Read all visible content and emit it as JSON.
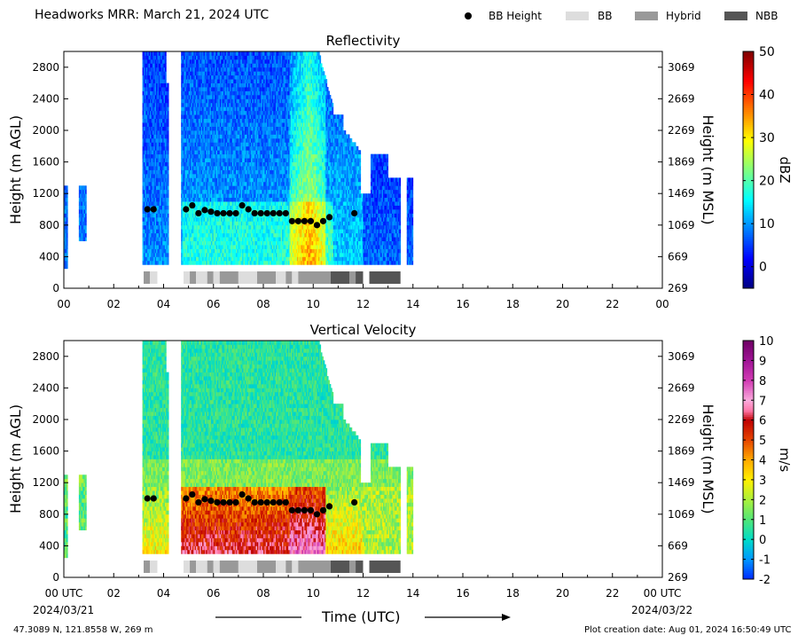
{
  "title": "Headworks MRR:  March 21, 2024 UTC",
  "legend": [
    {
      "label": "BB Height",
      "kind": "dot",
      "color": "#000000"
    },
    {
      "label": "BB",
      "kind": "swatch",
      "color": "#dddddd"
    },
    {
      "label": "Hybrid",
      "kind": "swatch",
      "color": "#999999"
    },
    {
      "label": "NBB",
      "kind": "swatch",
      "color": "#555555"
    }
  ],
  "xlabel": "Time (UTC)",
  "date_start": "2024/03/21",
  "date_end": "2024/03/22",
  "footer_location": "47.3089 N, 121.8558 W, 269 m",
  "footer_created": "Plot creation date: Aug 01, 2024 16:50:49 UTC",
  "chart_data": [
    {
      "type": "heatmap",
      "title": "Reflectivity",
      "ylabel": "Height (m AGL)",
      "ylabel_right": "Height (m MSL)",
      "colorbar_label": "dBZ",
      "colorbar_ticks": [
        0,
        10,
        20,
        30,
        40,
        50
      ],
      "colorbar_range": [
        -5,
        50
      ],
      "colormap": "jet",
      "xlim": [
        0,
        24
      ],
      "ylim": [
        0,
        3000
      ],
      "x_ticks": [
        "00",
        "02",
        "04",
        "06",
        "08",
        "10",
        "12",
        "14",
        "16",
        "18",
        "20",
        "22",
        "00"
      ],
      "y_ticks": [
        0,
        400,
        800,
        1200,
        1600,
        2000,
        2400,
        2800
      ],
      "y_ticks_right": [
        "269",
        "669",
        "1069",
        "1469",
        "1869",
        "2269",
        "2669",
        "3069"
      ],
      "field": "reflectivity"
    },
    {
      "type": "heatmap",
      "title": "Vertical Velocity",
      "ylabel": "Height (m AGL)",
      "ylabel_right": "Height (m MSL)",
      "colorbar_label": "m/s",
      "colorbar_ticks": [
        -2,
        -1,
        0,
        1,
        2,
        3,
        4,
        5,
        6,
        7,
        8,
        9,
        10
      ],
      "colorbar_range": [
        -2,
        10
      ],
      "colormap": "velocity",
      "xlim": [
        0,
        24
      ],
      "ylim": [
        0,
        3000
      ],
      "x_ticks": [
        "00 UTC",
        "02",
        "04",
        "06",
        "08",
        "10",
        "12",
        "14",
        "16",
        "18",
        "20",
        "22",
        "00 UTC"
      ],
      "y_ticks": [
        0,
        400,
        800,
        1200,
        1600,
        2000,
        2400,
        2800
      ],
      "y_ticks_right": [
        "269",
        "669",
        "1069",
        "1469",
        "1869",
        "2269",
        "2669",
        "3069"
      ],
      "field": "velocity"
    }
  ],
  "bb_heights": [
    {
      "t": 3.35,
      "h": 1000
    },
    {
      "t": 3.6,
      "h": 1000
    },
    {
      "t": 4.9,
      "h": 1000
    },
    {
      "t": 5.15,
      "h": 1050
    },
    {
      "t": 5.4,
      "h": 950
    },
    {
      "t": 5.65,
      "h": 990
    },
    {
      "t": 5.9,
      "h": 970
    },
    {
      "t": 6.15,
      "h": 950
    },
    {
      "t": 6.4,
      "h": 950
    },
    {
      "t": 6.65,
      "h": 950
    },
    {
      "t": 6.9,
      "h": 950
    },
    {
      "t": 7.15,
      "h": 1050
    },
    {
      "t": 7.4,
      "h": 1000
    },
    {
      "t": 7.65,
      "h": 950
    },
    {
      "t": 7.9,
      "h": 950
    },
    {
      "t": 8.15,
      "h": 950
    },
    {
      "t": 8.4,
      "h": 950
    },
    {
      "t": 8.65,
      "h": 950
    },
    {
      "t": 8.9,
      "h": 950
    },
    {
      "t": 9.15,
      "h": 850
    },
    {
      "t": 9.4,
      "h": 850
    },
    {
      "t": 9.65,
      "h": 850
    },
    {
      "t": 9.9,
      "h": 850
    },
    {
      "t": 10.15,
      "h": 800
    },
    {
      "t": 10.4,
      "h": 850
    },
    {
      "t": 10.65,
      "h": 900
    },
    {
      "t": 11.65,
      "h": 950
    }
  ],
  "bb_class_segments": [
    {
      "start": 3.2,
      "end": 3.45,
      "class": "Hybrid"
    },
    {
      "start": 3.45,
      "end": 3.75,
      "class": "BB"
    },
    {
      "start": 4.8,
      "end": 5.05,
      "class": "BB"
    },
    {
      "start": 5.05,
      "end": 5.3,
      "class": "Hybrid"
    },
    {
      "start": 5.3,
      "end": 5.75,
      "class": "BB"
    },
    {
      "start": 5.75,
      "end": 6.0,
      "class": "Hybrid"
    },
    {
      "start": 6.0,
      "end": 6.25,
      "class": "BB"
    },
    {
      "start": 6.25,
      "end": 7.0,
      "class": "Hybrid"
    },
    {
      "start": 7.0,
      "end": 7.75,
      "class": "BB"
    },
    {
      "start": 7.75,
      "end": 8.5,
      "class": "Hybrid"
    },
    {
      "start": 8.5,
      "end": 8.9,
      "class": "BB"
    },
    {
      "start": 8.9,
      "end": 9.15,
      "class": "Hybrid"
    },
    {
      "start": 9.15,
      "end": 9.4,
      "class": "BB"
    },
    {
      "start": 9.4,
      "end": 10.7,
      "class": "Hybrid"
    },
    {
      "start": 10.7,
      "end": 11.45,
      "class": "NBB"
    },
    {
      "start": 11.45,
      "end": 11.7,
      "class": "Hybrid"
    },
    {
      "start": 11.7,
      "end": 12.0,
      "class": "NBB"
    },
    {
      "start": 12.25,
      "end": 13.5,
      "class": "NBB"
    }
  ],
  "colors": {
    "BB": "#dddddd",
    "Hybrid": "#999999",
    "NBB": "#555555"
  }
}
